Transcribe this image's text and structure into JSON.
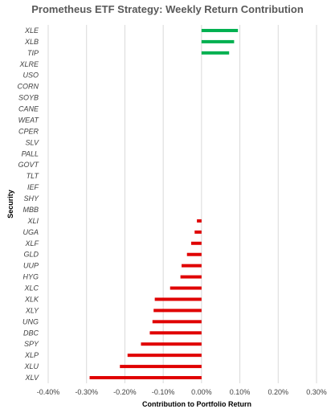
{
  "chart_data": {
    "type": "bar",
    "orientation": "horizontal",
    "title": "Prometheus ETF Strategy: Weekly Return Contribution",
    "xlabel": "Contribution to Portfolio Return",
    "ylabel": "Security",
    "xlim": [
      -0.004,
      0.003
    ],
    "x_tick_labels": [
      "-0.40%",
      "-0.30%",
      "-0.20%",
      "-0.10%",
      "0.00%",
      "0.10%",
      "0.20%",
      "0.30%"
    ],
    "grid": "vertical gridlines",
    "legend": "none",
    "colors": {
      "positive": "#00b050",
      "negative": "#e00000",
      "grid": "#d9d9d9"
    },
    "categories": [
      "XLE",
      "XLB",
      "TIP",
      "XLRE",
      "USO",
      "CORN",
      "SOYB",
      "CANE",
      "WEAT",
      "CPER",
      "SLV",
      "PALL",
      "GOVT",
      "TLT",
      "IEF",
      "SHY",
      "MBB",
      "XLI",
      "UGA",
      "XLF",
      "GLD",
      "UUP",
      "HYG",
      "XLC",
      "XLK",
      "XLY",
      "UNG",
      "DBC",
      "SPY",
      "XLP",
      "XLU",
      "XLV"
    ],
    "values": [
      0.00095,
      0.00085,
      0.00072,
      0,
      0,
      0,
      0,
      0,
      0,
      0,
      0,
      0,
      0,
      0,
      0,
      0,
      0,
      -0.00012,
      -0.00018,
      -0.00027,
      -0.00038,
      -0.00052,
      -0.00055,
      -0.00082,
      -0.00122,
      -0.00125,
      -0.00128,
      -0.00135,
      -0.00158,
      -0.00193,
      -0.00213,
      -0.00292
    ]
  }
}
